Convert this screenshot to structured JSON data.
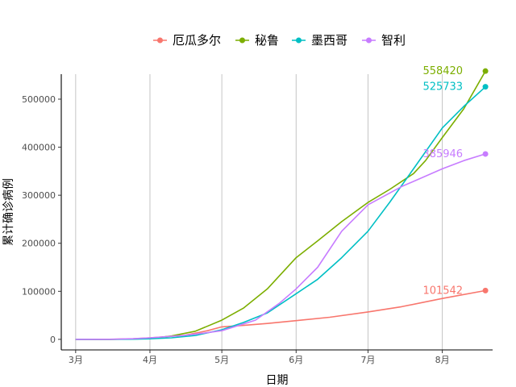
{
  "chart_data": {
    "type": "line",
    "title": "",
    "xlabel": "日期",
    "ylabel": "累计确诊病例",
    "x_ticks": [
      "3月",
      "4月",
      "5月",
      "6月",
      "7月",
      "8月"
    ],
    "x_tick_dates": [
      "2020-03-01",
      "2020-04-01",
      "2020-05-01",
      "2020-06-01",
      "2020-07-01",
      "2020-08-01"
    ],
    "xlim": [
      "2020-02-24",
      "2020-08-22"
    ],
    "y_ticks": [
      0,
      100000,
      200000,
      300000,
      400000,
      500000
    ],
    "ylim": [
      -22000,
      552000
    ],
    "grid": "vertical-major",
    "legend_position": "top",
    "series": [
      {
        "name": "厄瓜多尔",
        "color": "#F8766D",
        "end_label": "101542",
        "points": [
          [
            "2020-03-01",
            6
          ],
          [
            "2020-03-15",
            60
          ],
          [
            "2020-03-25",
            1200
          ],
          [
            "2020-04-01",
            3200
          ],
          [
            "2020-04-15",
            8000
          ],
          [
            "2020-04-25",
            18000
          ],
          [
            "2020-05-01",
            26000
          ],
          [
            "2020-05-10",
            29000
          ],
          [
            "2020-05-20",
            33000
          ],
          [
            "2020-06-01",
            39000
          ],
          [
            "2020-06-15",
            46000
          ],
          [
            "2020-07-01",
            57000
          ],
          [
            "2020-07-15",
            68000
          ],
          [
            "2020-08-01",
            85000
          ],
          [
            "2020-08-19",
            101542
          ]
        ]
      },
      {
        "name": "秘鲁",
        "color": "#7CAE00",
        "end_label": "558420",
        "points": [
          [
            "2020-03-01",
            0
          ],
          [
            "2020-03-15",
            40
          ],
          [
            "2020-03-25",
            700
          ],
          [
            "2020-04-01",
            1500
          ],
          [
            "2020-04-10",
            7000
          ],
          [
            "2020-04-20",
            17000
          ],
          [
            "2020-05-01",
            40000
          ],
          [
            "2020-05-10",
            65000
          ],
          [
            "2020-05-20",
            105000
          ],
          [
            "2020-06-01",
            170000
          ],
          [
            "2020-06-10",
            205000
          ],
          [
            "2020-06-20",
            245000
          ],
          [
            "2020-07-01",
            285000
          ],
          [
            "2020-07-10",
            312000
          ],
          [
            "2020-07-20",
            345000
          ],
          [
            "2020-07-25",
            372000
          ],
          [
            "2020-08-01",
            420000
          ],
          [
            "2020-08-10",
            480000
          ],
          [
            "2020-08-19",
            558420
          ]
        ]
      },
      {
        "name": "墨西哥",
        "color": "#00BFC4",
        "end_label": "525733",
        "points": [
          [
            "2020-03-01",
            5
          ],
          [
            "2020-03-15",
            50
          ],
          [
            "2020-03-25",
            400
          ],
          [
            "2020-04-01",
            1200
          ],
          [
            "2020-04-10",
            3200
          ],
          [
            "2020-04-20",
            8000
          ],
          [
            "2020-05-01",
            20000
          ],
          [
            "2020-05-10",
            35000
          ],
          [
            "2020-05-20",
            55000
          ],
          [
            "2020-06-01",
            95000
          ],
          [
            "2020-06-10",
            125000
          ],
          [
            "2020-06-20",
            170000
          ],
          [
            "2020-07-01",
            225000
          ],
          [
            "2020-07-10",
            285000
          ],
          [
            "2020-07-20",
            355000
          ],
          [
            "2020-08-01",
            440000
          ],
          [
            "2020-08-10",
            485000
          ],
          [
            "2020-08-19",
            525733
          ]
        ]
      },
      {
        "name": "智利",
        "color": "#C77CFF",
        "end_label": "385946",
        "points": [
          [
            "2020-03-01",
            0
          ],
          [
            "2020-03-15",
            100
          ],
          [
            "2020-03-25",
            1300
          ],
          [
            "2020-04-01",
            3100
          ],
          [
            "2020-04-15",
            8000
          ],
          [
            "2020-04-25",
            14000
          ],
          [
            "2020-05-01",
            18000
          ],
          [
            "2020-05-15",
            40000
          ],
          [
            "2020-05-25",
            75000
          ],
          [
            "2020-06-01",
            105000
          ],
          [
            "2020-06-10",
            150000
          ],
          [
            "2020-06-20",
            225000
          ],
          [
            "2020-07-01",
            280000
          ],
          [
            "2020-07-15",
            318000
          ],
          [
            "2020-08-01",
            355000
          ],
          [
            "2020-08-10",
            372000
          ],
          [
            "2020-08-19",
            385946
          ]
        ]
      }
    ]
  }
}
